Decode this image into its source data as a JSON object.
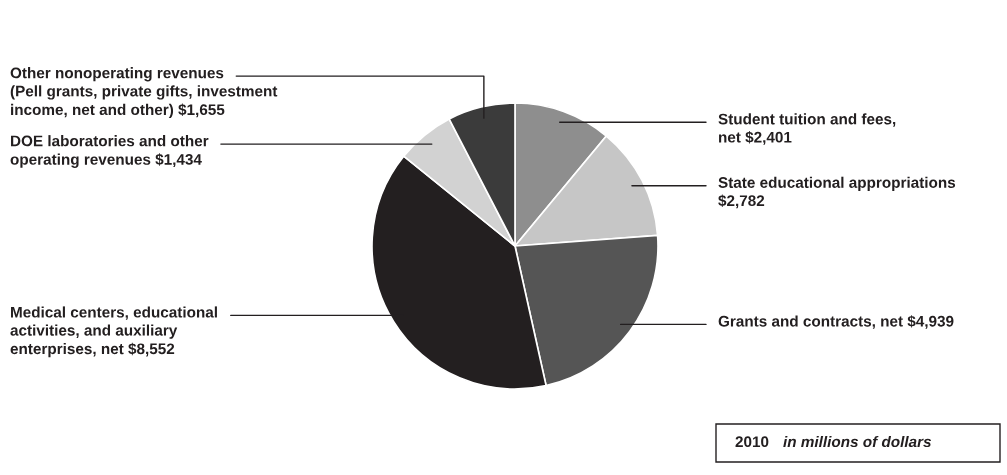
{
  "chart_data": {
    "type": "pie",
    "categories": [
      "Student tuition and fees,\nnet $2,401",
      "State educational appropriations\n$2,782",
      "Grants and contracts, net $4,939",
      "Medical centers, educational\nactivities, and auxiliary\nenterprises, net $8,552",
      "DOE laboratories and other\noperating revenues $1,434",
      "Other nonoperating revenues\n(Pell grants, private gifts, investment\nincome, net and other) $1,655"
    ],
    "values": [
      2401,
      2782,
      4939,
      8552,
      1434,
      1655
    ],
    "colors": [
      "#8e8e8e",
      "#c6c6c6",
      "#555555",
      "#231f20",
      "#d2d2d2",
      "#3b3b3b"
    ],
    "annotations": [
      "2010",
      "in millions of dollars"
    ]
  }
}
